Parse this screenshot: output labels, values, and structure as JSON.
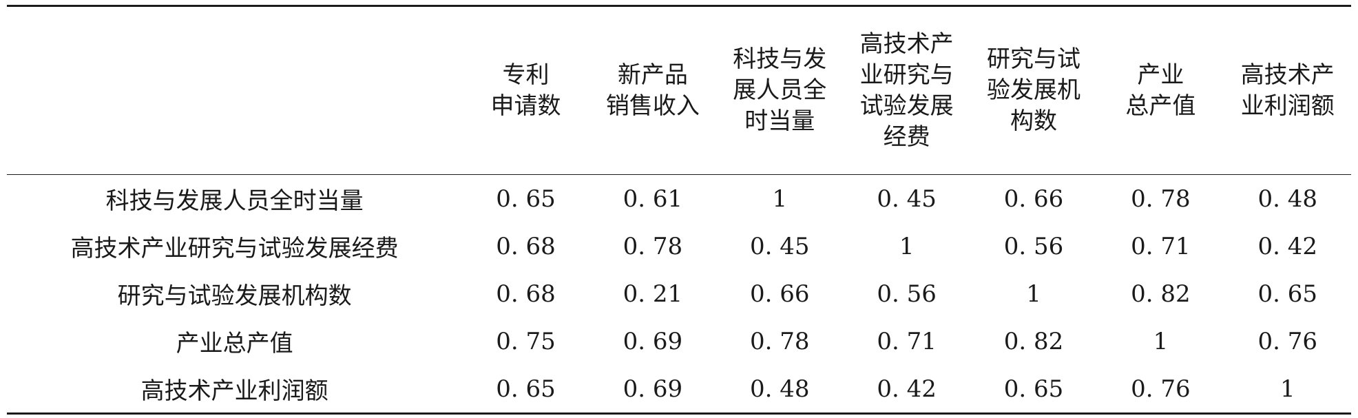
{
  "table": {
    "corner": "",
    "columns": [
      [
        "专利",
        "申请数"
      ],
      [
        "新产品",
        "销售收入"
      ],
      [
        "科技与发",
        "展人员全",
        "时当量"
      ],
      [
        "高技术产",
        "业研究与",
        "试验发展",
        "经费"
      ],
      [
        "研究与试",
        "验发展机",
        "构数"
      ],
      [
        "产业",
        "总产值"
      ],
      [
        "高技术产",
        "业利润额"
      ]
    ],
    "rows": [
      {
        "label": "科技与发展人员全时当量",
        "values": [
          "0. 65",
          "0. 61",
          "1",
          "0. 45",
          "0. 66",
          "0. 78",
          "0. 48"
        ]
      },
      {
        "label": "高技术产业研究与试验发展经费",
        "values": [
          "0. 68",
          "0. 78",
          "0. 45",
          "1",
          "0. 56",
          "0. 71",
          "0. 42"
        ]
      },
      {
        "label": "研究与试验发展机构数",
        "values": [
          "0. 68",
          "0. 21",
          "0. 66",
          "0. 56",
          "1",
          "0. 82",
          "0. 65"
        ]
      },
      {
        "label": "产业总产值",
        "values": [
          "0. 75",
          "0. 69",
          "0. 78",
          "0. 71",
          "0. 82",
          "1",
          "0. 76"
        ]
      },
      {
        "label": "高技术产业利润额",
        "values": [
          "0. 65",
          "0. 69",
          "0. 48",
          "0. 42",
          "0. 65",
          "0. 76",
          "1"
        ]
      }
    ]
  }
}
